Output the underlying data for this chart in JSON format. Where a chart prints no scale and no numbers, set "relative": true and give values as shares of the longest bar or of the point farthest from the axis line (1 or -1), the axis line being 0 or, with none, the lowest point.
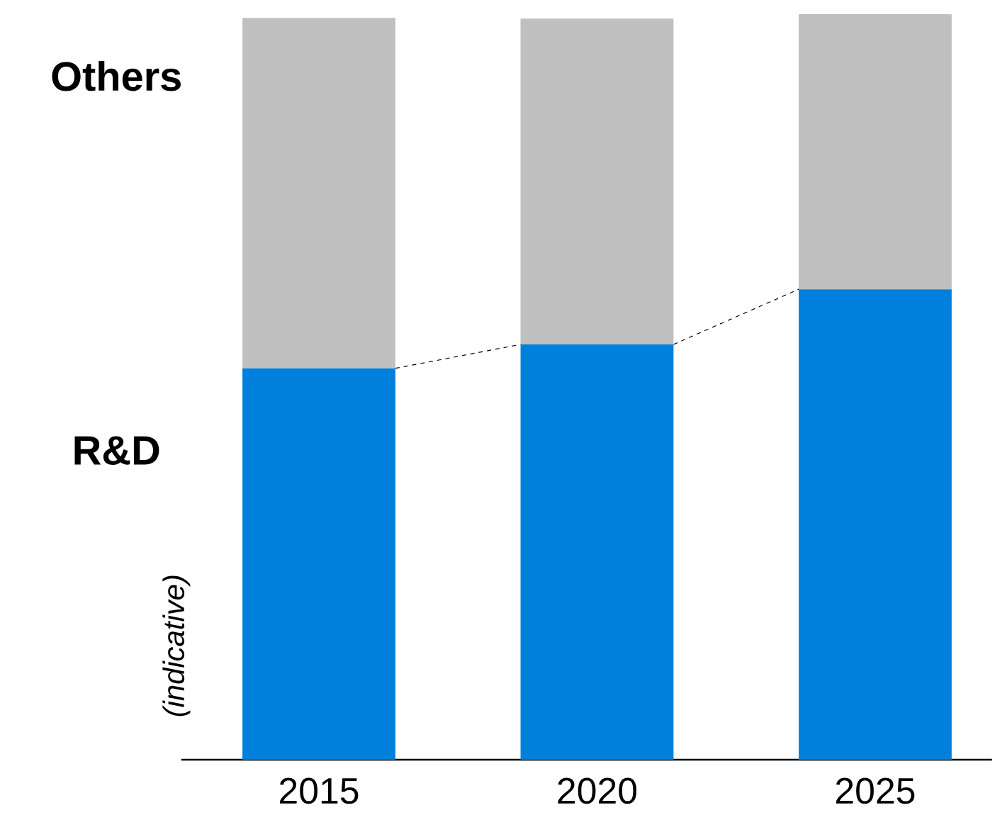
{
  "chart_data": {
    "type": "bar",
    "stacked": true,
    "relative": true,
    "categories": [
      "2015",
      "2020",
      "2025"
    ],
    "series": [
      {
        "name": "R&D",
        "color": "#0080dc",
        "values": [
          0.525,
          0.557,
          0.631
        ]
      },
      {
        "name": "Others",
        "color": "#c0c0c0",
        "values": [
          0.47,
          0.437,
          0.369
        ]
      }
    ],
    "annotations": [
      "(indicative)"
    ]
  }
}
